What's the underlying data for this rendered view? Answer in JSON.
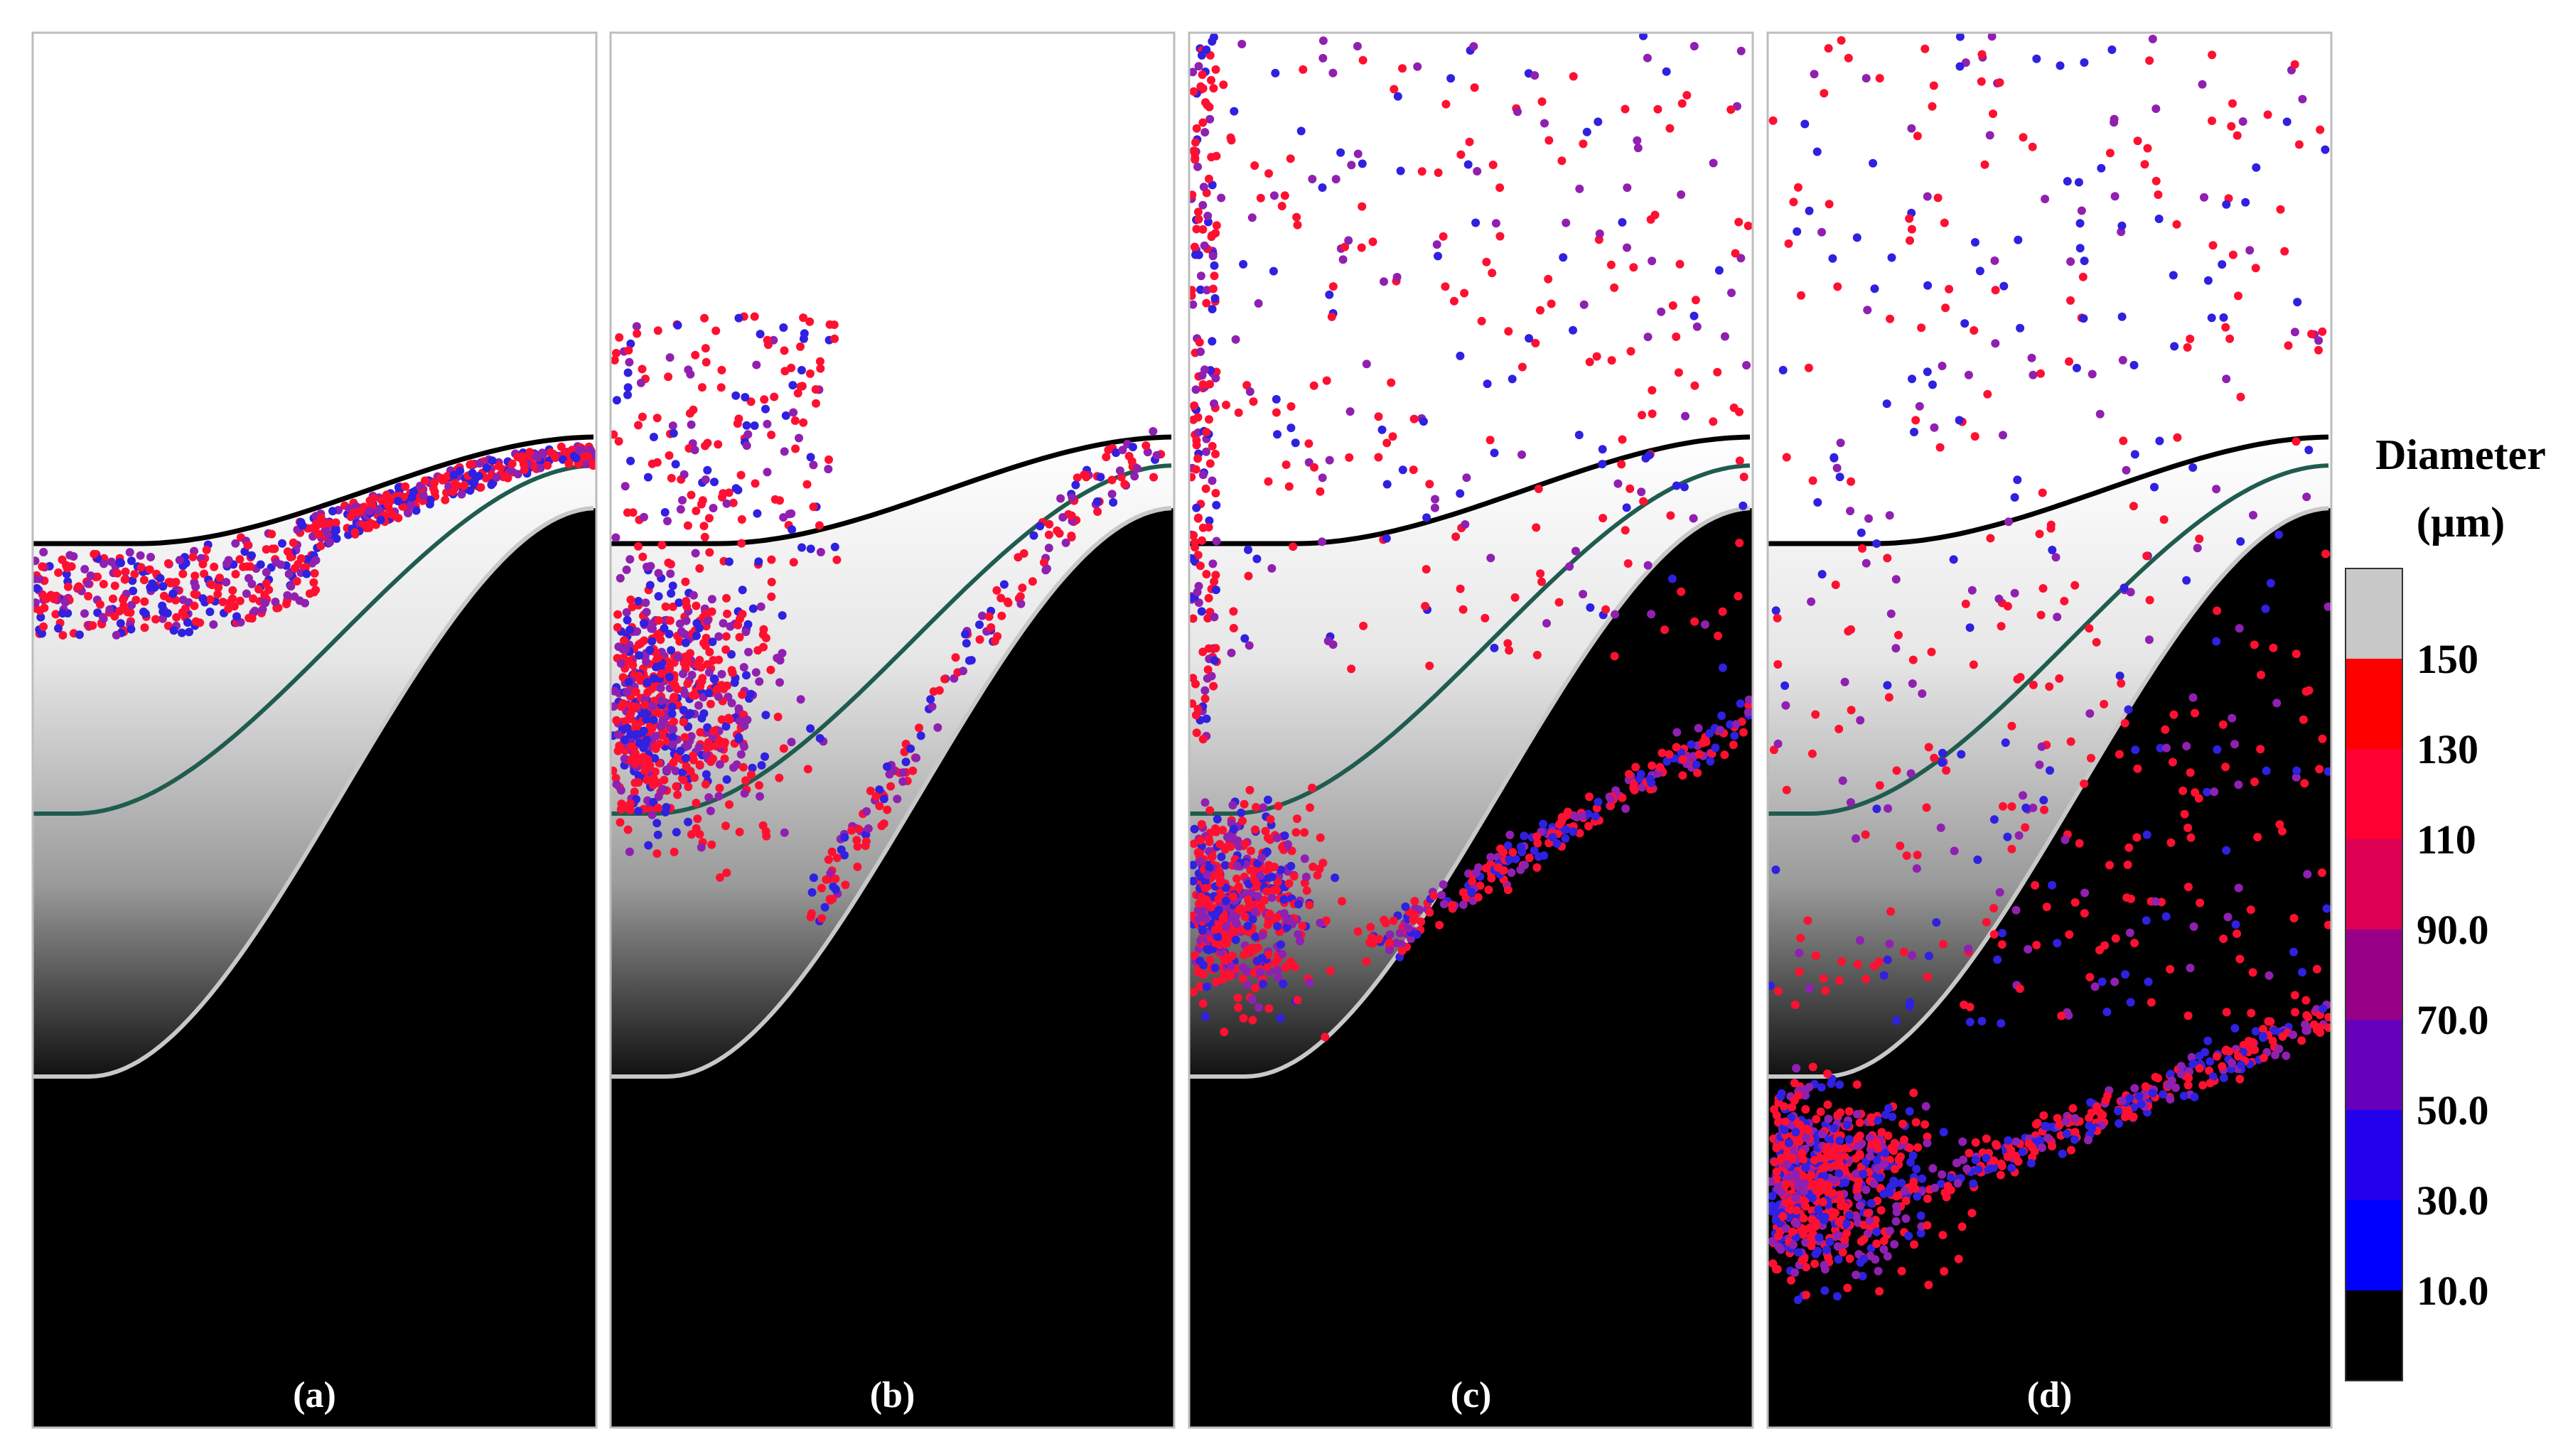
{
  "panels": [
    {
      "label": "(a)",
      "stage": 0
    },
    {
      "label": "(b)",
      "stage": 1
    },
    {
      "label": "(c)",
      "stage": 2
    },
    {
      "label": "(d)",
      "stage": 3
    }
  ],
  "legend": {
    "title_line1": "Diameter",
    "title_line2": "(µm)",
    "ticks": [
      "150",
      "130",
      "110",
      "90.0",
      "70.0",
      "50.0",
      "30.0",
      "10.0"
    ],
    "bands": [
      "#c8c8c8",
      "#ff0000",
      "#ff0033",
      "#dd0055",
      "#990088",
      "#6600bb",
      "#2200ee",
      "#0000ff",
      "#000000"
    ]
  },
  "colors": {
    "upper_boundary": "#000000",
    "middle_curve": "#1f5c4f",
    "lower_boundary": "#c8c8c8",
    "particle_red": "#ff1030",
    "particle_blue": "#3020e0",
    "particle_purple": "#9020b0"
  }
}
